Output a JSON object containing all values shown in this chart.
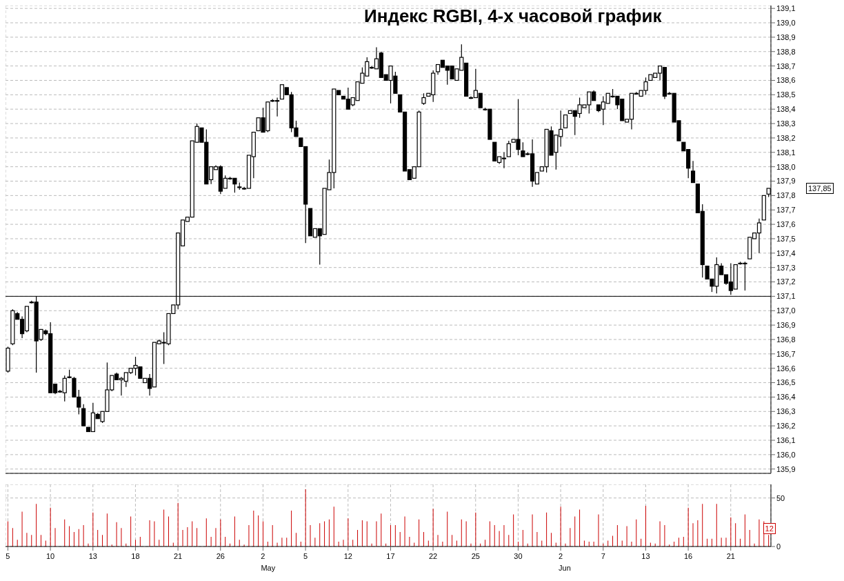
{
  "chart_data": [
    {
      "type": "candlestick",
      "title": "Индекс RGBI, 4-х часовой график",
      "categories": [
        "5",
        null,
        null,
        null,
        null,
        null,
        null,
        null,
        null,
        "10",
        null,
        null,
        null,
        null,
        null,
        null,
        null,
        null,
        "13",
        null,
        null,
        null,
        null,
        null,
        null,
        null,
        null,
        "18",
        null,
        null,
        null,
        null,
        null,
        null,
        null,
        null,
        "21",
        null,
        null,
        null,
        null,
        null,
        null,
        null,
        null,
        "26",
        null,
        null,
        null,
        null,
        null,
        null,
        null,
        null,
        "2",
        null,
        null,
        null,
        null,
        null,
        null,
        null,
        null,
        "5",
        null,
        null,
        null,
        null,
        null,
        null,
        null,
        null,
        "12",
        null,
        null,
        null,
        null,
        null,
        null,
        null,
        null,
        "17",
        null,
        null,
        null,
        null,
        null,
        null,
        null,
        null,
        "22",
        null,
        null,
        null,
        null,
        null,
        null,
        null,
        null,
        "25",
        null,
        null,
        null,
        null,
        null,
        null,
        null,
        null,
        "30",
        null,
        null,
        null,
        null,
        null,
        null,
        null,
        null,
        "2",
        null,
        null,
        null,
        null,
        null,
        null,
        null,
        null,
        "7",
        null,
        null,
        null,
        null,
        null,
        null,
        null,
        null,
        "13",
        null,
        null,
        null,
        null,
        null,
        null,
        null,
        null,
        "16",
        null,
        null,
        null,
        null,
        null,
        null,
        null,
        null,
        "21",
        null,
        null,
        null,
        null,
        null,
        null,
        null,
        null
      ],
      "ohlc": [
        [
          136.58,
          136.75,
          136.57,
          136.74
        ],
        [
          136.77,
          137.01,
          136.76,
          137.0
        ],
        [
          136.98,
          136.99,
          136.94,
          136.94
        ],
        [
          136.94,
          136.96,
          136.81,
          136.84
        ],
        [
          136.86,
          137.03,
          136.85,
          137.03
        ],
        [
          137.06,
          137.07,
          137.05,
          137.06
        ],
        [
          137.06,
          137.1,
          136.57,
          136.79
        ],
        [
          136.8,
          136.87,
          136.79,
          136.87
        ],
        [
          136.86,
          136.87,
          136.83,
          136.84
        ],
        [
          136.84,
          136.92,
          136.43,
          136.43
        ],
        [
          136.49,
          136.49,
          136.42,
          136.43
        ],
        [
          136.44,
          136.45,
          136.43,
          136.44
        ],
        [
          136.43,
          136.55,
          136.37,
          136.53
        ],
        [
          136.54,
          136.59,
          136.53,
          136.54
        ],
        [
          136.53,
          136.54,
          136.4,
          136.4
        ],
        [
          136.4,
          136.45,
          136.28,
          136.33
        ],
        [
          136.32,
          136.35,
          136.2,
          136.2
        ],
        [
          136.19,
          136.19,
          136.16,
          136.16
        ],
        [
          136.16,
          136.36,
          136.16,
          136.29
        ],
        [
          136.28,
          136.29,
          136.25,
          136.25
        ],
        [
          136.23,
          136.3,
          136.22,
          136.3
        ],
        [
          136.3,
          136.64,
          136.3,
          136.45
        ],
        [
          136.45,
          136.55,
          136.44,
          136.55
        ],
        [
          136.56,
          136.57,
          136.52,
          136.52
        ],
        [
          136.52,
          136.54,
          136.41,
          136.53
        ],
        [
          136.51,
          136.57,
          136.47,
          136.57
        ],
        [
          136.57,
          136.6,
          136.56,
          136.6
        ],
        [
          136.6,
          136.68,
          136.55,
          136.62
        ],
        [
          136.61,
          136.61,
          136.53,
          136.53
        ],
        [
          136.5,
          136.53,
          136.5,
          136.53
        ],
        [
          136.53,
          136.56,
          136.41,
          136.46
        ],
        [
          136.47,
          136.78,
          136.47,
          136.78
        ],
        [
          136.77,
          136.8,
          136.77,
          136.79
        ],
        [
          136.78,
          136.85,
          136.63,
          136.78
        ],
        [
          136.77,
          136.98,
          136.76,
          136.98
        ],
        [
          136.98,
          137.04,
          136.98,
          137.04
        ],
        [
          137.04,
          137.54,
          137.01,
          137.54
        ],
        [
          137.45,
          137.63,
          137.45,
          137.63
        ],
        [
          137.62,
          137.65,
          137.62,
          137.65
        ],
        [
          137.65,
          138.18,
          137.65,
          138.18
        ],
        [
          138.17,
          138.3,
          138.17,
          138.28
        ],
        [
          138.27,
          138.27,
          138.17,
          138.17
        ],
        [
          138.17,
          138.26,
          137.88,
          137.88
        ],
        [
          137.91,
          138.0,
          137.88,
          138.0
        ],
        [
          137.98,
          138.01,
          137.98,
          138.0
        ],
        [
          138.0,
          138.01,
          137.81,
          137.83
        ],
        [
          137.85,
          137.94,
          137.85,
          137.92
        ],
        [
          137.92,
          137.93,
          137.91,
          137.92
        ],
        [
          137.92,
          137.92,
          137.82,
          137.88
        ],
        [
          137.86,
          137.89,
          137.84,
          137.86
        ],
        [
          137.85,
          137.86,
          137.84,
          137.85
        ],
        [
          137.85,
          138.08,
          137.85,
          138.08
        ],
        [
          138.07,
          138.24,
          137.92,
          138.24
        ],
        [
          138.25,
          138.34,
          138.25,
          138.34
        ],
        [
          138.34,
          138.41,
          138.24,
          138.24
        ],
        [
          138.25,
          138.45,
          138.24,
          138.45
        ],
        [
          138.46,
          138.47,
          138.45,
          138.46
        ],
        [
          138.46,
          138.48,
          138.35,
          138.46
        ],
        [
          138.47,
          138.57,
          138.47,
          138.57
        ],
        [
          138.55,
          138.55,
          138.5,
          138.5
        ],
        [
          138.5,
          138.52,
          138.24,
          138.27
        ],
        [
          138.27,
          138.32,
          138.21,
          138.21
        ],
        [
          138.2,
          138.2,
          138.14,
          138.14
        ],
        [
          138.14,
          138.14,
          137.47,
          137.74
        ],
        [
          137.71,
          137.71,
          137.52,
          137.52
        ],
        [
          137.51,
          137.57,
          137.51,
          137.57
        ],
        [
          137.57,
          137.57,
          137.32,
          137.52
        ],
        [
          137.53,
          137.85,
          137.53,
          137.85
        ],
        [
          137.84,
          138.05,
          137.84,
          137.96
        ],
        [
          137.96,
          138.54,
          137.85,
          138.54
        ],
        [
          138.53,
          138.53,
          138.5,
          138.5
        ],
        [
          138.49,
          138.49,
          138.47,
          138.47
        ],
        [
          138.47,
          138.55,
          138.4,
          138.4
        ],
        [
          138.43,
          138.48,
          138.42,
          138.48
        ],
        [
          138.46,
          138.59,
          138.46,
          138.59
        ],
        [
          138.58,
          138.69,
          138.58,
          138.65
        ],
        [
          138.63,
          138.76,
          138.63,
          138.73
        ],
        [
          138.69,
          138.7,
          138.68,
          138.69
        ],
        [
          138.68,
          138.83,
          138.68,
          138.75
        ],
        [
          138.79,
          138.8,
          138.62,
          138.62
        ],
        [
          138.64,
          138.64,
          138.6,
          138.6
        ],
        [
          138.6,
          138.7,
          138.44,
          138.7
        ],
        [
          138.63,
          138.66,
          138.51,
          138.51
        ],
        [
          138.5,
          138.5,
          138.38,
          138.38
        ],
        [
          138.38,
          138.38,
          137.97,
          137.97
        ],
        [
          137.98,
          137.98,
          137.91,
          137.91
        ],
        [
          137.92,
          138.0,
          137.92,
          138.0
        ],
        [
          138.0,
          138.39,
          138.0,
          138.38
        ],
        [
          138.44,
          138.51,
          138.43,
          138.48
        ],
        [
          138.49,
          138.51,
          138.49,
          138.51
        ],
        [
          138.5,
          138.67,
          138.45,
          138.65
        ],
        [
          138.66,
          138.71,
          138.64,
          138.71
        ],
        [
          138.74,
          138.74,
          138.69,
          138.69
        ],
        [
          138.7,
          138.7,
          138.57,
          138.67
        ],
        [
          138.7,
          138.7,
          138.61,
          138.61
        ],
        [
          138.6,
          138.68,
          138.6,
          138.68
        ],
        [
          138.67,
          138.85,
          138.67,
          138.76
        ],
        [
          138.72,
          138.72,
          138.49,
          138.49
        ],
        [
          138.48,
          138.49,
          138.47,
          138.48
        ],
        [
          138.48,
          138.68,
          138.48,
          138.53
        ],
        [
          138.51,
          138.51,
          138.41,
          138.41
        ],
        [
          138.4,
          138.41,
          138.39,
          138.4
        ],
        [
          138.4,
          138.4,
          138.19,
          138.19
        ],
        [
          138.17,
          138.17,
          138.04,
          138.04
        ],
        [
          138.03,
          138.07,
          138.02,
          138.07
        ],
        [
          138.06,
          138.1,
          137.99,
          138.06
        ],
        [
          138.07,
          138.18,
          138.07,
          138.16
        ],
        [
          138.17,
          138.19,
          138.17,
          138.19
        ],
        [
          138.19,
          138.47,
          138.08,
          138.12
        ],
        [
          138.11,
          138.17,
          138.07,
          138.07
        ],
        [
          138.09,
          138.1,
          138.08,
          138.09
        ],
        [
          138.09,
          138.19,
          137.86,
          137.9
        ],
        [
          137.88,
          137.96,
          137.88,
          137.96
        ],
        [
          137.97,
          138.0,
          137.97,
          138.0
        ],
        [
          138.0,
          138.26,
          137.96,
          138.26
        ],
        [
          138.25,
          138.28,
          138.08,
          138.08
        ],
        [
          138.1,
          138.22,
          137.98,
          138.22
        ],
        [
          138.21,
          138.39,
          138.14,
          138.26
        ],
        [
          138.27,
          138.36,
          138.27,
          138.36
        ],
        [
          138.37,
          138.39,
          138.37,
          138.39
        ],
        [
          138.39,
          138.39,
          138.22,
          138.35
        ],
        [
          138.37,
          138.48,
          138.34,
          138.43
        ],
        [
          138.41,
          138.43,
          138.41,
          138.43
        ],
        [
          138.43,
          138.52,
          138.37,
          138.52
        ],
        [
          138.52,
          138.53,
          138.46,
          138.46
        ],
        [
          138.43,
          138.43,
          138.38,
          138.39
        ],
        [
          138.4,
          138.49,
          138.29,
          138.45
        ],
        [
          138.44,
          138.51,
          138.44,
          138.51
        ],
        [
          138.49,
          138.54,
          138.48,
          138.49
        ],
        [
          138.49,
          138.49,
          138.4,
          138.43
        ],
        [
          138.47,
          138.47,
          138.32,
          138.32
        ],
        [
          138.31,
          138.33,
          138.31,
          138.33
        ],
        [
          138.33,
          138.51,
          138.26,
          138.51
        ],
        [
          138.51,
          138.52,
          138.5,
          138.51
        ],
        [
          138.49,
          138.53,
          138.49,
          138.53
        ],
        [
          138.53,
          138.62,
          138.5,
          138.59
        ],
        [
          138.6,
          138.64,
          138.6,
          138.64
        ],
        [
          138.62,
          138.65,
          138.62,
          138.65
        ],
        [
          138.65,
          138.7,
          138.6,
          138.7
        ],
        [
          138.69,
          138.69,
          138.47,
          138.49
        ],
        [
          138.51,
          138.52,
          138.5,
          138.51
        ],
        [
          138.51,
          138.51,
          138.31,
          138.31
        ],
        [
          138.32,
          138.32,
          138.18,
          138.18
        ],
        [
          138.17,
          138.17,
          138.11,
          138.11
        ],
        [
          138.12,
          138.12,
          137.92,
          137.99
        ],
        [
          137.97,
          138.04,
          137.89,
          137.89
        ],
        [
          137.88,
          137.88,
          137.68,
          137.68
        ],
        [
          137.69,
          137.74,
          137.23,
          137.32
        ],
        [
          137.31,
          137.31,
          137.22,
          137.22
        ],
        [
          137.22,
          137.22,
          137.13,
          137.17
        ],
        [
          137.17,
          137.37,
          137.12,
          137.32
        ],
        [
          137.31,
          137.33,
          137.25,
          137.25
        ],
        [
          137.25,
          137.25,
          137.18,
          137.19
        ],
        [
          137.2,
          137.33,
          137.11,
          137.14
        ],
        [
          137.15,
          137.32,
          137.15,
          137.32
        ],
        [
          137.33,
          137.34,
          137.32,
          137.33
        ],
        [
          137.33,
          137.34,
          137.14,
          137.33
        ],
        [
          137.36,
          137.51,
          137.36,
          137.51
        ],
        [
          137.5,
          137.54,
          137.5,
          137.54
        ],
        [
          137.54,
          137.64,
          137.4,
          137.61
        ],
        [
          137.63,
          137.8,
          137.63,
          137.8
        ],
        [
          137.81,
          137.85,
          137.79,
          137.85
        ]
      ],
      "color": "#000000",
      "ylim": [
        135.87,
        139.12
      ],
      "yticks": [
        {
          "value": 135.9,
          "label": "135,9"
        },
        {
          "value": 136.0,
          "label": "136,0"
        },
        {
          "value": 136.1,
          "label": "136,1"
        },
        {
          "value": 136.2,
          "label": "136,2"
        },
        {
          "value": 136.3,
          "label": "136,3"
        },
        {
          "value": 136.4,
          "label": "136,4"
        },
        {
          "value": 136.5,
          "label": "136,5"
        },
        {
          "value": 136.6,
          "label": "136,6"
        },
        {
          "value": 136.7,
          "label": "136,7"
        },
        {
          "value": 136.8,
          "label": "136,8"
        },
        {
          "value": 136.9,
          "label": "136,9"
        },
        {
          "value": 137.0,
          "label": "137,0"
        },
        {
          "value": 137.1,
          "label": "137,1"
        },
        {
          "value": 137.2,
          "label": "137,2"
        },
        {
          "value": 137.3,
          "label": "137,3"
        },
        {
          "value": 137.4,
          "label": "137,4"
        },
        {
          "value": 137.5,
          "label": "137,5"
        },
        {
          "value": 137.6,
          "label": "137,6"
        },
        {
          "value": 137.7,
          "label": "137,7"
        },
        {
          "value": 137.8,
          "label": "137,8"
        },
        {
          "value": 137.9,
          "label": "137,9"
        },
        {
          "value": 138.0,
          "label": "138,0"
        },
        {
          "value": 138.1,
          "label": "138,1"
        },
        {
          "value": 138.2,
          "label": "138,2"
        },
        {
          "value": 138.3,
          "label": "138,3"
        },
        {
          "value": 138.4,
          "label": "138,4"
        },
        {
          "value": 138.5,
          "label": "138,5"
        },
        {
          "value": 138.6,
          "label": "138,6"
        },
        {
          "value": 138.7,
          "label": "138,7"
        },
        {
          "value": 138.8,
          "label": "138,8"
        },
        {
          "value": 138.9,
          "label": "138,9"
        },
        {
          "value": 139.0,
          "label": "139,0"
        },
        {
          "value": 139.1,
          "label": "139,1"
        }
      ],
      "grid": true,
      "tick_labels": "y",
      "ref_lines": [
        {
          "axis": "y",
          "value": 137.1,
          "color": "#000000"
        }
      ],
      "annotations": [
        "137,85"
      ]
    },
    {
      "type": "bar",
      "categories": [
        "5",
        null,
        null,
        null,
        null,
        null,
        null,
        null,
        null,
        "10",
        null,
        null,
        null,
        null,
        null,
        null,
        null,
        null,
        "13",
        null,
        null,
        null,
        null,
        null,
        null,
        null,
        null,
        "18",
        null,
        null,
        null,
        null,
        null,
        null,
        null,
        null,
        "21",
        null,
        null,
        null,
        null,
        null,
        null,
        null,
        null,
        "26",
        null,
        null,
        null,
        null,
        null,
        null,
        null,
        null,
        "2",
        null,
        null,
        null,
        null,
        null,
        null,
        null,
        null,
        "5",
        null,
        null,
        null,
        null,
        null,
        null,
        null,
        null,
        "12",
        null,
        null,
        null,
        null,
        null,
        null,
        null,
        null,
        "17",
        null,
        null,
        null,
        null,
        null,
        null,
        null,
        null,
        "22",
        null,
        null,
        null,
        null,
        null,
        null,
        null,
        null,
        "25",
        null,
        null,
        null,
        null,
        null,
        null,
        null,
        null,
        "30",
        null,
        null,
        null,
        null,
        null,
        null,
        null,
        null,
        "2",
        null,
        null,
        null,
        null,
        null,
        null,
        null,
        null,
        "7",
        null,
        null,
        null,
        null,
        null,
        null,
        null,
        null,
        "13",
        null,
        null,
        null,
        null,
        null,
        null,
        null,
        null,
        "16",
        null,
        null,
        null,
        null,
        null,
        null,
        null,
        null,
        "21",
        null,
        null,
        null,
        null,
        null,
        null,
        null,
        null
      ],
      "values": [
        26,
        19,
        7,
        36,
        14,
        12,
        44,
        12,
        6,
        40,
        19,
        null,
        28,
        21,
        15,
        18,
        22,
        3,
        35,
        17,
        12,
        34,
        2,
        25,
        19,
        3,
        31,
        7,
        10,
        null,
        27,
        26,
        7,
        38,
        31,
        4,
        45,
        17,
        20,
        26,
        19,
        null,
        29,
        10,
        19,
        28,
        10,
        3,
        31,
        7,
        2,
        22,
        37,
        32,
        26,
        5,
        22,
        4,
        9,
        9,
        37,
        14,
        5,
        59,
        22,
        9,
        24,
        26,
        28,
        41,
        5,
        7,
        29,
        7,
        17,
        27,
        26,
        3,
        26,
        34,
        3,
        22,
        22,
        15,
        31,
        10,
        4,
        28,
        15,
        6,
        39,
        12,
        5,
        36,
        12,
        6,
        28,
        26,
        3,
        35,
        3,
        7,
        26,
        22,
        16,
        22,
        12,
        33,
        5,
        17,
        3,
        33,
        15,
        6,
        35,
        14,
        4,
        41,
        3,
        19,
        31,
        38,
        6,
        5,
        5,
        33,
        3,
        6,
        11,
        22,
        6,
        21,
        5,
        28,
        8,
        42,
        4,
        3,
        26,
        22,
        2,
        5,
        9,
        10,
        40,
        24,
        27,
        44,
        8,
        8,
        44,
        9,
        9,
        30,
        24,
        8,
        33,
        17,
        3,
        28,
        26,
        12
      ],
      "color": "#cc0000",
      "ylim": [
        0,
        64
      ],
      "yticks": [
        0,
        50
      ],
      "grid": true,
      "value_labels": [
        null,
        null,
        null,
        null,
        null,
        null,
        null,
        null,
        null,
        null,
        null,
        null,
        null,
        null,
        null,
        null,
        null,
        null,
        null,
        null,
        null,
        null,
        null,
        null,
        null,
        null,
        null,
        null,
        null,
        null,
        null,
        null,
        null,
        null,
        null,
        null,
        null,
        null,
        null,
        null,
        null,
        null,
        null,
        null,
        null,
        null,
        null,
        null,
        null,
        null,
        null,
        null,
        null,
        null,
        null,
        null,
        null,
        null,
        null,
        null,
        null,
        null,
        null,
        null,
        null,
        null,
        null,
        null,
        null,
        null,
        null,
        null,
        null,
        null,
        null,
        null,
        null,
        null,
        null,
        null,
        null,
        null,
        null,
        null,
        null,
        null,
        null,
        null,
        null,
        null,
        null,
        null,
        null,
        null,
        null,
        null,
        null,
        null,
        null,
        null,
        null,
        null,
        null,
        null,
        null,
        null,
        null,
        null,
        null,
        null,
        null,
        null,
        null,
        null,
        null,
        null,
        null,
        null,
        null,
        null,
        null,
        null,
        null,
        null,
        null,
        null,
        null,
        null,
        null,
        null,
        null,
        null,
        null,
        null,
        null,
        null,
        null,
        null,
        null,
        null,
        null,
        null,
        null,
        null,
        null,
        null,
        null,
        null,
        null,
        null,
        null,
        null,
        null,
        null,
        null,
        null,
        null,
        null,
        null,
        null,
        null,
        "12"
      ],
      "annotations": [
        "May",
        "Jun"
      ]
    }
  ]
}
